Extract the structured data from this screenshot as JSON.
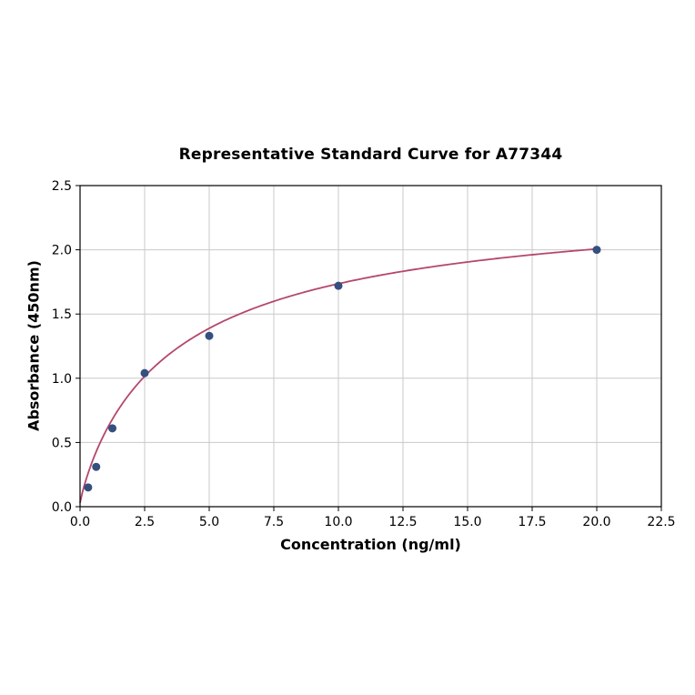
{
  "chart_data": {
    "type": "scatter",
    "title": "Representative Standard Curve for A77344",
    "xlabel": "Concentration (ng/ml)",
    "ylabel": "Absorbance (450nm)",
    "xlim": [
      0,
      22.5
    ],
    "ylim": [
      0,
      2.5
    ],
    "grid": true,
    "legend": "none",
    "x_ticks": [
      0,
      2.5,
      5,
      7.5,
      10,
      12.5,
      15,
      17.5,
      20,
      22.5
    ],
    "x_tick_labels": [
      "0.0",
      "2.5",
      "5.0",
      "7.5",
      "10.0",
      "12.5",
      "15.0",
      "17.5",
      "20.0",
      "22.5"
    ],
    "y_ticks": [
      0,
      0.5,
      1,
      1.5,
      2,
      2.5
    ],
    "y_tick_labels": [
      "0.0",
      "0.5",
      "1.0",
      "1.5",
      "2.0",
      "2.5"
    ],
    "points": {
      "x": [
        0.313,
        0.625,
        1.25,
        2.5,
        5,
        10,
        20
      ],
      "y": [
        0.15,
        0.31,
        0.61,
        1.04,
        1.33,
        1.72,
        2.0
      ]
    },
    "fit_curve": {
      "model": "4pl",
      "a": 0.03,
      "b": 0.9,
      "c": 3.8,
      "d": 2.45,
      "x_range": [
        0,
        20
      ]
    },
    "colors": {
      "curve": "#b5476b",
      "points": "#35507f",
      "grid": "#c9c9c9",
      "axis": "#000000",
      "background": "#ffffff"
    }
  }
}
